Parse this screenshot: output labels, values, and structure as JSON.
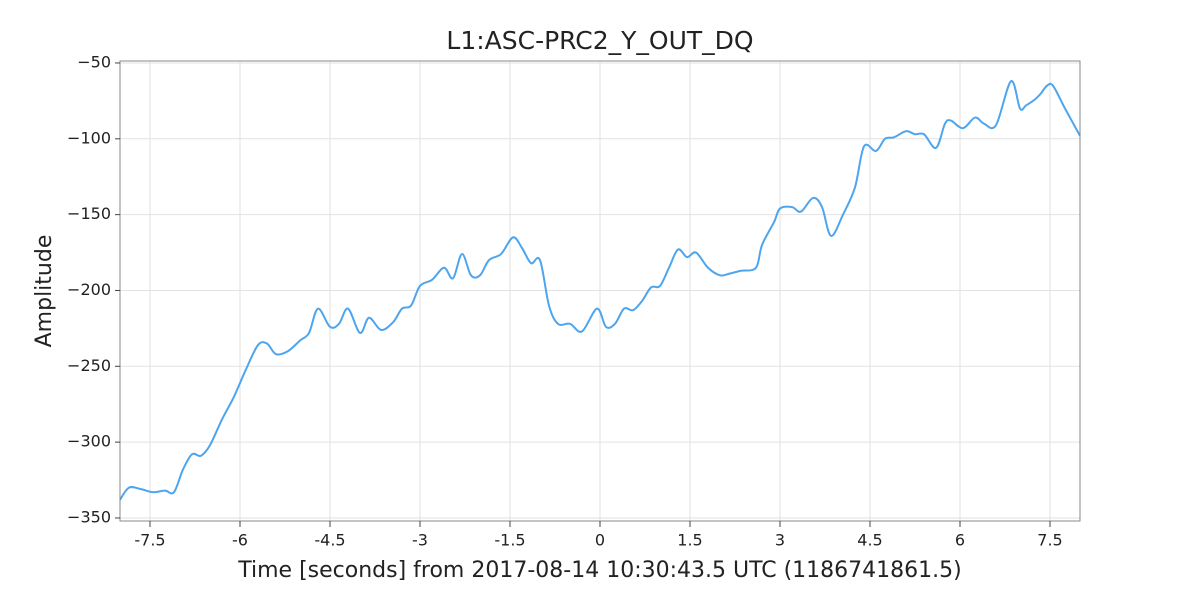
{
  "chart_data": {
    "type": "line",
    "title": "L1:ASC-PRC2_Y_OUT_DQ",
    "xlabel": "Time [seconds] from 2017-08-14 10:30:43.5 UTC (1186741861.5)",
    "ylabel": "Amplitude",
    "xlim": [
      -8,
      8
    ],
    "ylim": [
      -352,
      -48.7
    ],
    "xticks": [
      -7.5,
      -6,
      -4.5,
      -3,
      -1.5,
      0,
      1.5,
      3,
      4.5,
      6,
      7.5
    ],
    "yticks": [
      {
        "value": -350,
        "label": "−350"
      },
      {
        "value": -300,
        "label": "−300"
      },
      {
        "value": -250,
        "label": "−250"
      },
      {
        "value": -200,
        "label": "−200"
      },
      {
        "value": -150,
        "label": "−150"
      },
      {
        "value": -100,
        "label": "−100"
      },
      {
        "value": -50,
        "label": "−50"
      }
    ],
    "grid": true,
    "series": [
      {
        "color": "#4ca5ee",
        "x": [
          -8,
          -7.85,
          -7.65,
          -7.45,
          -7.25,
          -7.1,
          -6.95,
          -6.8,
          -6.65,
          -6.5,
          -6.3,
          -6.1,
          -5.9,
          -5.7,
          -5.55,
          -5.4,
          -5.2,
          -5,
          -4.85,
          -4.7,
          -4.5,
          -4.35,
          -4.2,
          -4.0,
          -3.85,
          -3.65,
          -3.45,
          -3.3,
          -3.15,
          -3.0,
          -2.8,
          -2.6,
          -2.45,
          -2.3,
          -2.15,
          -2.0,
          -1.85,
          -1.65,
          -1.45,
          -1.3,
          -1.15,
          -1.0,
          -0.85,
          -0.7,
          -0.5,
          -0.3,
          -0.05,
          0.1,
          0.25,
          0.4,
          0.55,
          0.7,
          0.85,
          1.0,
          1.15,
          1.3,
          1.45,
          1.6,
          1.8,
          2.0,
          2.15,
          2.35,
          2.6,
          2.7,
          2.9,
          3.0,
          3.2,
          3.35,
          3.55,
          3.7,
          3.85,
          4.05,
          4.25,
          4.4,
          4.6,
          4.75,
          4.9,
          5.1,
          5.25,
          5.4,
          5.6,
          5.75,
          5.85,
          6.05,
          6.25,
          6.4,
          6.6,
          6.85,
          7.0,
          7.1,
          7.25,
          7.35,
          7.45,
          7.55,
          7.75,
          8.0
        ],
        "values": [
          -338,
          -330,
          -331,
          -333,
          -332,
          -333,
          -318,
          -308,
          -309,
          -302,
          -285,
          -270,
          -252,
          -236,
          -235,
          -242,
          -240,
          -233,
          -228,
          -212,
          -224,
          -222,
          -212,
          -228,
          -218,
          -226,
          -221,
          -212,
          -210,
          -197,
          -193,
          -185,
          -192,
          -176,
          -190,
          -190,
          -180,
          -176,
          -165,
          -172,
          -182,
          -180,
          -210,
          -222,
          -222,
          -227,
          -212,
          -224,
          -222,
          -212,
          -213,
          -207,
          -198,
          -197,
          -185,
          -173,
          -178,
          -175,
          -185,
          -190,
          -189,
          -187,
          -185,
          -170,
          -155,
          -146,
          -145,
          -148,
          -139,
          -145,
          -164,
          -150,
          -132,
          -105,
          -108,
          -100,
          -99,
          -95,
          -97,
          -97,
          -106,
          -90,
          -88,
          -93,
          -86,
          -90,
          -91,
          -62,
          -80,
          -78,
          -74,
          -70,
          -65,
          -65,
          -80,
          -98
        ]
      }
    ]
  }
}
